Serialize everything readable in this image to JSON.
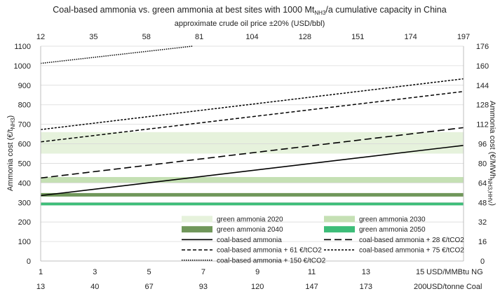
{
  "chart_data": {
    "type": "line",
    "title": "Coal-based ammonia vs. green ammonia at best sites with 1000 Mt",
    "title_sub": "NH3",
    "title_end": "/a cumulative capacity in China",
    "top_axis_label": "approximate crude oil price ±20% (USD/bbl)",
    "top_ticks": [
      "12",
      "35",
      "58",
      "81",
      "104",
      "128",
      "151",
      "174",
      "197"
    ],
    "ylabel_left": "Ammonia cost (€/t",
    "ylabel_left_sub": "NH3",
    "ylabel_left_end": ")",
    "ylabel_right": "Ammonia cost (€/MWh",
    "ylabel_right_sub": "NH3,HHV",
    "ylabel_right_end": ")",
    "ylim": [
      0,
      1100
    ],
    "y_ticks": [
      0,
      100,
      200,
      300,
      400,
      500,
      600,
      700,
      800,
      900,
      1000,
      1100
    ],
    "y2_ticks": [
      0,
      16,
      32,
      48,
      64,
      80,
      96,
      112,
      128,
      144,
      160,
      176
    ],
    "y2_max": 176,
    "xlim": [
      1,
      16.6
    ],
    "x_ticks_ng": [
      "1",
      "3",
      "5",
      "7",
      "9",
      "11",
      "13",
      "15"
    ],
    "x_ticks_coal": [
      "13",
      "40",
      "67",
      "93",
      "120",
      "147",
      "173",
      "200"
    ],
    "x_unit_ng": "USD/MMBtu NG",
    "x_unit_coal": "USD/tonne Coal",
    "bands": [
      {
        "name": "green ammonia 2020",
        "low": 550,
        "high": 660,
        "color": "#e6f2dc"
      },
      {
        "name": "green ammonia 2030",
        "low": 400,
        "high": 430,
        "color": "#c5e0b4"
      },
      {
        "name": "green ammonia 2040",
        "low": 330,
        "high": 348,
        "color": "#70975a"
      },
      {
        "name": "green ammonia 2050",
        "low": 285,
        "high": 300,
        "color": "#3cbd78"
      }
    ],
    "series": [
      {
        "name": "coal-based ammonia",
        "x": [
          1,
          16.6
        ],
        "y": [
          335,
          592
        ],
        "dash": "",
        "width": 1.6
      },
      {
        "name": "coal-based ammonia + 28 €/tCO2",
        "x": [
          1,
          16.6
        ],
        "y": [
          425,
          683
        ],
        "dash": "10,5",
        "width": 1.6
      },
      {
        "name": "coal-based ammonia + 61 €/tCO2",
        "x": [
          1,
          16.6
        ],
        "y": [
          610,
          868
        ],
        "dash": "5,3",
        "width": 1.5
      },
      {
        "name": "coal-based ammonia + 75 €/tCO2",
        "x": [
          1,
          16.6
        ],
        "y": [
          673,
          933
        ],
        "dash": "3,2",
        "width": 1.5
      },
      {
        "name": "coal-based ammonia + 150 €/tCO2",
        "x": [
          1,
          6.6
        ],
        "y": [
          1012,
          1100
        ],
        "dash": "1.5,1.5",
        "width": 1.5
      }
    ]
  }
}
